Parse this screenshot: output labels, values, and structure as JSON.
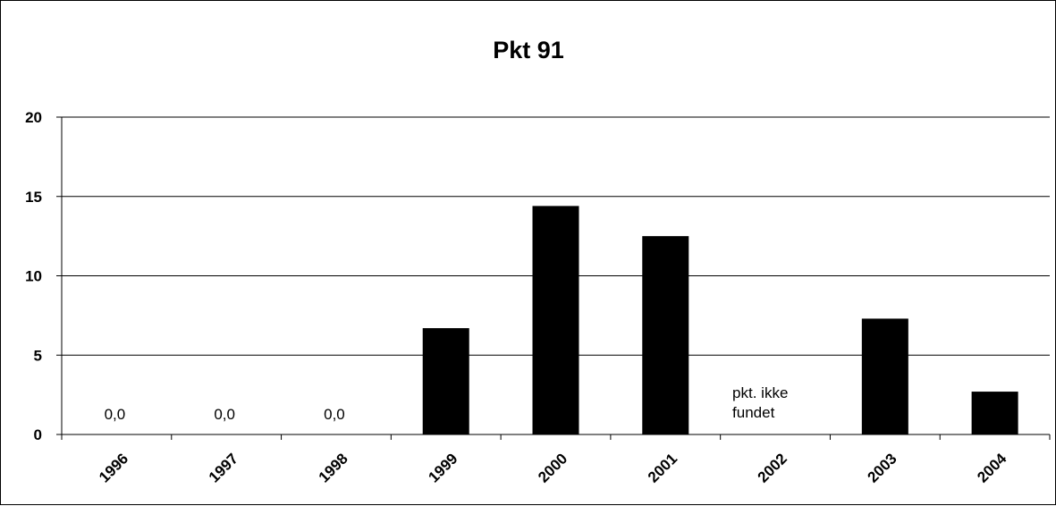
{
  "chart_data": {
    "type": "bar",
    "title": "Pkt 91",
    "xlabel": "",
    "ylabel": "",
    "categories": [
      "1996",
      "1997",
      "1998",
      "1999",
      "2000",
      "2001",
      "2002",
      "2003",
      "2004"
    ],
    "values": [
      0.0,
      0.0,
      0.0,
      6.7,
      14.4,
      12.5,
      null,
      7.3,
      2.7
    ],
    "ylim": [
      0,
      20
    ],
    "yticks": [
      "0",
      "5",
      "10",
      "15",
      "20"
    ],
    "grid": true,
    "bar_color": "#000000",
    "value_labels": [
      {
        "category": "1996",
        "text": "0,0"
      },
      {
        "category": "1997",
        "text": "0,0"
      },
      {
        "category": "1998",
        "text": "0,0"
      }
    ],
    "annotations": [
      {
        "category": "2002",
        "lines": [
          "pkt. ikke",
          "fundet"
        ]
      }
    ]
  }
}
